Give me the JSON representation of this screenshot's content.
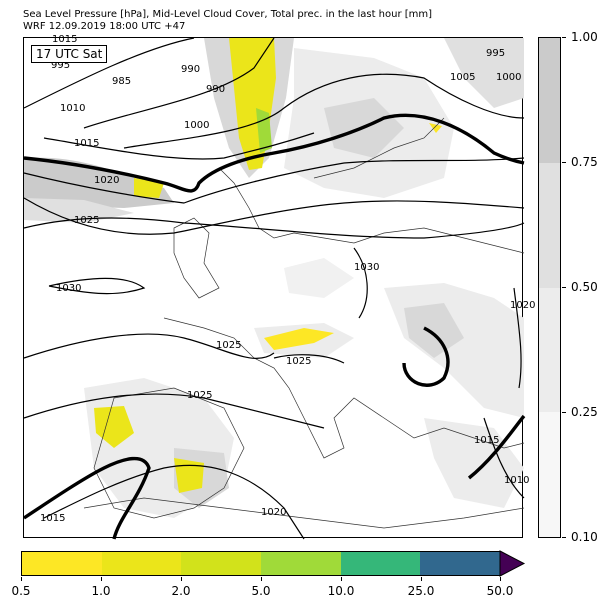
{
  "header": {
    "line1": "Sea Level Pressure [hPa], Mid-Level Cloud Cover, Total prec. in the last hour [mm]",
    "line2": "WRF 12.09.2019 18:00 UTC +47"
  },
  "map": {
    "time_label": "17 UTC Sat",
    "isobar_labels": [
      "995",
      "985",
      "990",
      "990",
      "1000",
      "1005",
      "1000",
      "995",
      "1010",
      "1015",
      "1020",
      "1025",
      "1030",
      "1030",
      "1025",
      "1025",
      "1025",
      "1020",
      "1015",
      "1020",
      "1015",
      "1010",
      "1015"
    ]
  },
  "colorbars": {
    "cloud": {
      "labels": [
        "1.00",
        "0.75",
        "0.50",
        "0.25",
        "0.10"
      ],
      "colors": [
        "#cbcbcb",
        "#e0e0e0",
        "#ececec",
        "#f7f7f7"
      ]
    },
    "precip": {
      "labels": [
        "0.5",
        "1.0",
        "2.0",
        "5.0",
        "10.0",
        "25.0",
        "50.0"
      ],
      "colors": [
        "#fde725",
        "#ebe51a",
        "#d2e21b",
        "#a0da39",
        "#35b779",
        "#31688e",
        "#3b528b"
      ],
      "extend_color": "#440154"
    }
  }
}
